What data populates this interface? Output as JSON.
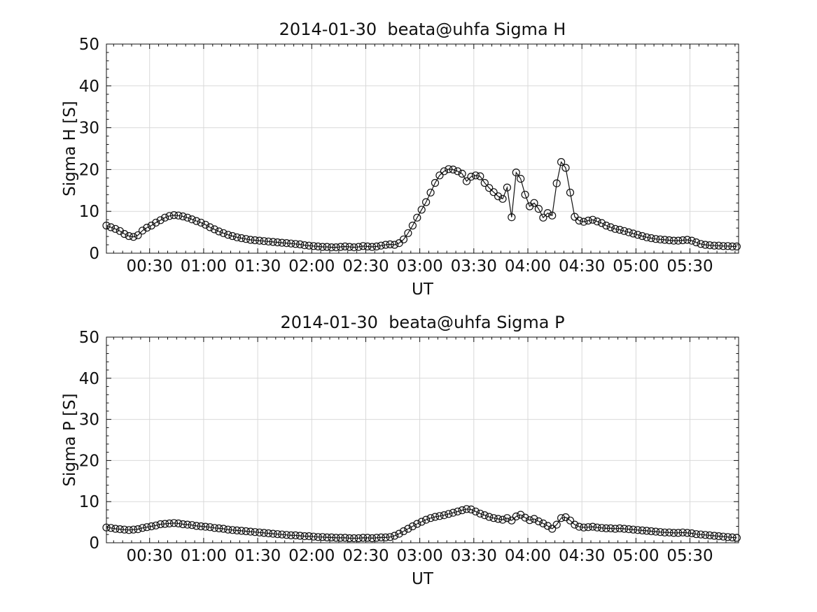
{
  "figure": {
    "colors": {
      "line": "#111111",
      "grid": "#d9d9d9",
      "text": "#111111",
      "background": "#ffffff"
    }
  },
  "chart_data": [
    {
      "type": "line",
      "title": "2014-01-30  beata@uhfa Sigma H",
      "xlabel": "UT",
      "ylabel": "Sigma H [S]",
      "ylim": [
        0,
        50
      ],
      "yticks": [
        0,
        10,
        20,
        30,
        40,
        50
      ],
      "y_minor_step": 2,
      "xlim_minutes": [
        6,
        357
      ],
      "x_minor_step_minutes": 5,
      "xticks": [
        {
          "minutes": 30,
          "label": "00:30"
        },
        {
          "minutes": 60,
          "label": "01:00"
        },
        {
          "minutes": 90,
          "label": "01:30"
        },
        {
          "minutes": 120,
          "label": "02:00"
        },
        {
          "minutes": 150,
          "label": "02:30"
        },
        {
          "minutes": 180,
          "label": "03:00"
        },
        {
          "minutes": 210,
          "label": "03:30"
        },
        {
          "minutes": 240,
          "label": "04:00"
        },
        {
          "minutes": 270,
          "label": "04:30"
        },
        {
          "minutes": 300,
          "label": "05:00"
        },
        {
          "minutes": 330,
          "label": "05:30"
        }
      ],
      "grid": true,
      "legend": "none",
      "marker": "circle",
      "x_start_minutes": 6,
      "x_step_minutes": 2.5,
      "values": [
        6.6,
        6.2,
        5.8,
        5.3,
        4.6,
        4.1,
        3.9,
        4.3,
        5.4,
        6.1,
        6.6,
        7.3,
        7.9,
        8.5,
        8.9,
        9.1,
        9.0,
        8.8,
        8.5,
        8.1,
        7.7,
        7.3,
        6.8,
        6.2,
        5.7,
        5.2,
        4.8,
        4.4,
        4.1,
        3.8,
        3.6,
        3.4,
        3.2,
        3.1,
        3.0,
        2.9,
        2.8,
        2.7,
        2.6,
        2.5,
        2.4,
        2.3,
        2.2,
        2.1,
        1.9,
        1.8,
        1.7,
        1.6,
        1.5,
        1.5,
        1.4,
        1.4,
        1.5,
        1.6,
        1.5,
        1.4,
        1.5,
        1.7,
        1.6,
        1.5,
        1.6,
        1.8,
        2.0,
        2.1,
        2.0,
        2.4,
        3.3,
        4.8,
        6.6,
        8.5,
        10.4,
        12.2,
        14.5,
        16.8,
        18.6,
        19.6,
        20.1,
        20.0,
        19.6,
        19.0,
        17.2,
        18.3,
        18.6,
        18.4,
        16.8,
        15.6,
        14.6,
        13.6,
        13.0,
        15.7,
        8.6,
        19.3,
        17.8,
        14.0,
        11.2,
        12.0,
        10.6,
        8.5,
        9.6,
        9.0,
        16.7,
        21.8,
        20.4,
        14.5,
        8.7,
        7.8,
        7.5,
        7.8,
        8.0,
        7.6,
        7.2,
        6.6,
        6.2,
        5.8,
        5.6,
        5.3,
        5.0,
        4.7,
        4.4,
        4.1,
        3.8,
        3.6,
        3.4,
        3.3,
        3.2,
        3.1,
        3.0,
        3.0,
        3.1,
        3.2,
        3.0,
        2.6,
        2.2,
        2.0,
        1.9,
        1.8,
        1.8,
        1.7,
        1.7,
        1.6,
        1.6
      ]
    },
    {
      "type": "line",
      "title": "2014-01-30  beata@uhfa Sigma P",
      "xlabel": "UT",
      "ylabel": "Sigma P [S]",
      "ylim": [
        0,
        50
      ],
      "yticks": [
        0,
        10,
        20,
        30,
        40,
        50
      ],
      "y_minor_step": 2,
      "xlim_minutes": [
        6,
        357
      ],
      "x_minor_step_minutes": 5,
      "xticks": [
        {
          "minutes": 30,
          "label": "00:30"
        },
        {
          "minutes": 60,
          "label": "01:00"
        },
        {
          "minutes": 90,
          "label": "01:30"
        },
        {
          "minutes": 120,
          "label": "02:00"
        },
        {
          "minutes": 150,
          "label": "02:30"
        },
        {
          "minutes": 180,
          "label": "03:00"
        },
        {
          "minutes": 210,
          "label": "03:30"
        },
        {
          "minutes": 240,
          "label": "04:00"
        },
        {
          "minutes": 270,
          "label": "04:30"
        },
        {
          "minutes": 300,
          "label": "05:00"
        },
        {
          "minutes": 330,
          "label": "05:30"
        }
      ],
      "grid": true,
      "legend": "none",
      "marker": "circle",
      "x_start_minutes": 6,
      "x_step_minutes": 2.5,
      "values": [
        3.7,
        3.6,
        3.4,
        3.3,
        3.2,
        3.1,
        3.2,
        3.3,
        3.6,
        3.8,
        4.0,
        4.2,
        4.5,
        4.6,
        4.7,
        4.8,
        4.7,
        4.5,
        4.4,
        4.3,
        4.1,
        4.0,
        3.9,
        3.8,
        3.6,
        3.5,
        3.4,
        3.2,
        3.1,
        3.0,
        2.9,
        2.8,
        2.7,
        2.6,
        2.5,
        2.4,
        2.3,
        2.2,
        2.1,
        2.0,
        1.9,
        1.8,
        1.8,
        1.7,
        1.6,
        1.6,
        1.5,
        1.4,
        1.4,
        1.3,
        1.3,
        1.2,
        1.2,
        1.2,
        1.1,
        1.1,
        1.1,
        1.2,
        1.2,
        1.1,
        1.2,
        1.3,
        1.3,
        1.4,
        1.7,
        2.2,
        2.8,
        3.4,
        4.0,
        4.6,
        5.1,
        5.6,
        6.0,
        6.3,
        6.5,
        6.7,
        7.0,
        7.3,
        7.6,
        7.9,
        8.2,
        8.1,
        7.6,
        7.1,
        6.7,
        6.3,
        6.0,
        5.8,
        5.6,
        6.0,
        5.4,
        6.4,
        6.8,
        6.1,
        5.5,
        5.8,
        5.2,
        4.7,
        4.1,
        3.4,
        4.4,
        6.0,
        6.2,
        5.4,
        4.4,
        3.9,
        3.7,
        3.8,
        3.9,
        3.7,
        3.6,
        3.5,
        3.5,
        3.4,
        3.5,
        3.4,
        3.3,
        3.2,
        3.1,
        3.0,
        2.9,
        2.8,
        2.7,
        2.6,
        2.5,
        2.5,
        2.4,
        2.4,
        2.5,
        2.4,
        2.3,
        2.1,
        2.0,
        1.9,
        1.8,
        1.7,
        1.6,
        1.5,
        1.4,
        1.3,
        1.2
      ]
    }
  ]
}
